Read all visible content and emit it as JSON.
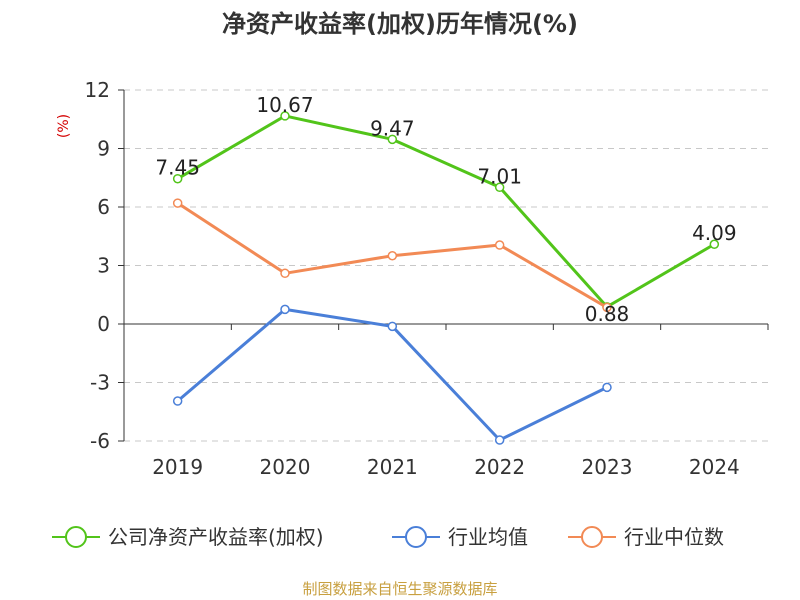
{
  "chart_data": {
    "type": "line",
    "title": "净资产收益率(加权)历年情况(%)",
    "ylabel": "(%)",
    "xlabel": "",
    "categories": [
      "2019",
      "2020",
      "2021",
      "2022",
      "2023",
      "2024"
    ],
    "ylim": [
      -6,
      12
    ],
    "yticks": [
      -6,
      -3,
      0,
      3,
      6,
      9,
      12
    ],
    "grid": true,
    "legend_position": "bottom",
    "series": [
      {
        "name": "公司净资产收益率(加权)",
        "color": "#52c41a",
        "values": [
          7.45,
          10.67,
          9.47,
          7.01,
          0.88,
          4.09
        ],
        "labels": [
          "7.45",
          "10.67",
          "9.47",
          "7.01",
          "0.88",
          "4.09"
        ]
      },
      {
        "name": "行业均值",
        "color": "#4a7fd8",
        "values": [
          -3.95,
          0.75,
          -0.12,
          -5.95,
          -3.25,
          null
        ]
      },
      {
        "name": "行业中位数",
        "color": "#f28a55",
        "values": [
          6.2,
          2.6,
          3.5,
          4.05,
          0.85,
          null
        ]
      }
    ],
    "source": "制图数据来自恒生聚源数据库"
  }
}
